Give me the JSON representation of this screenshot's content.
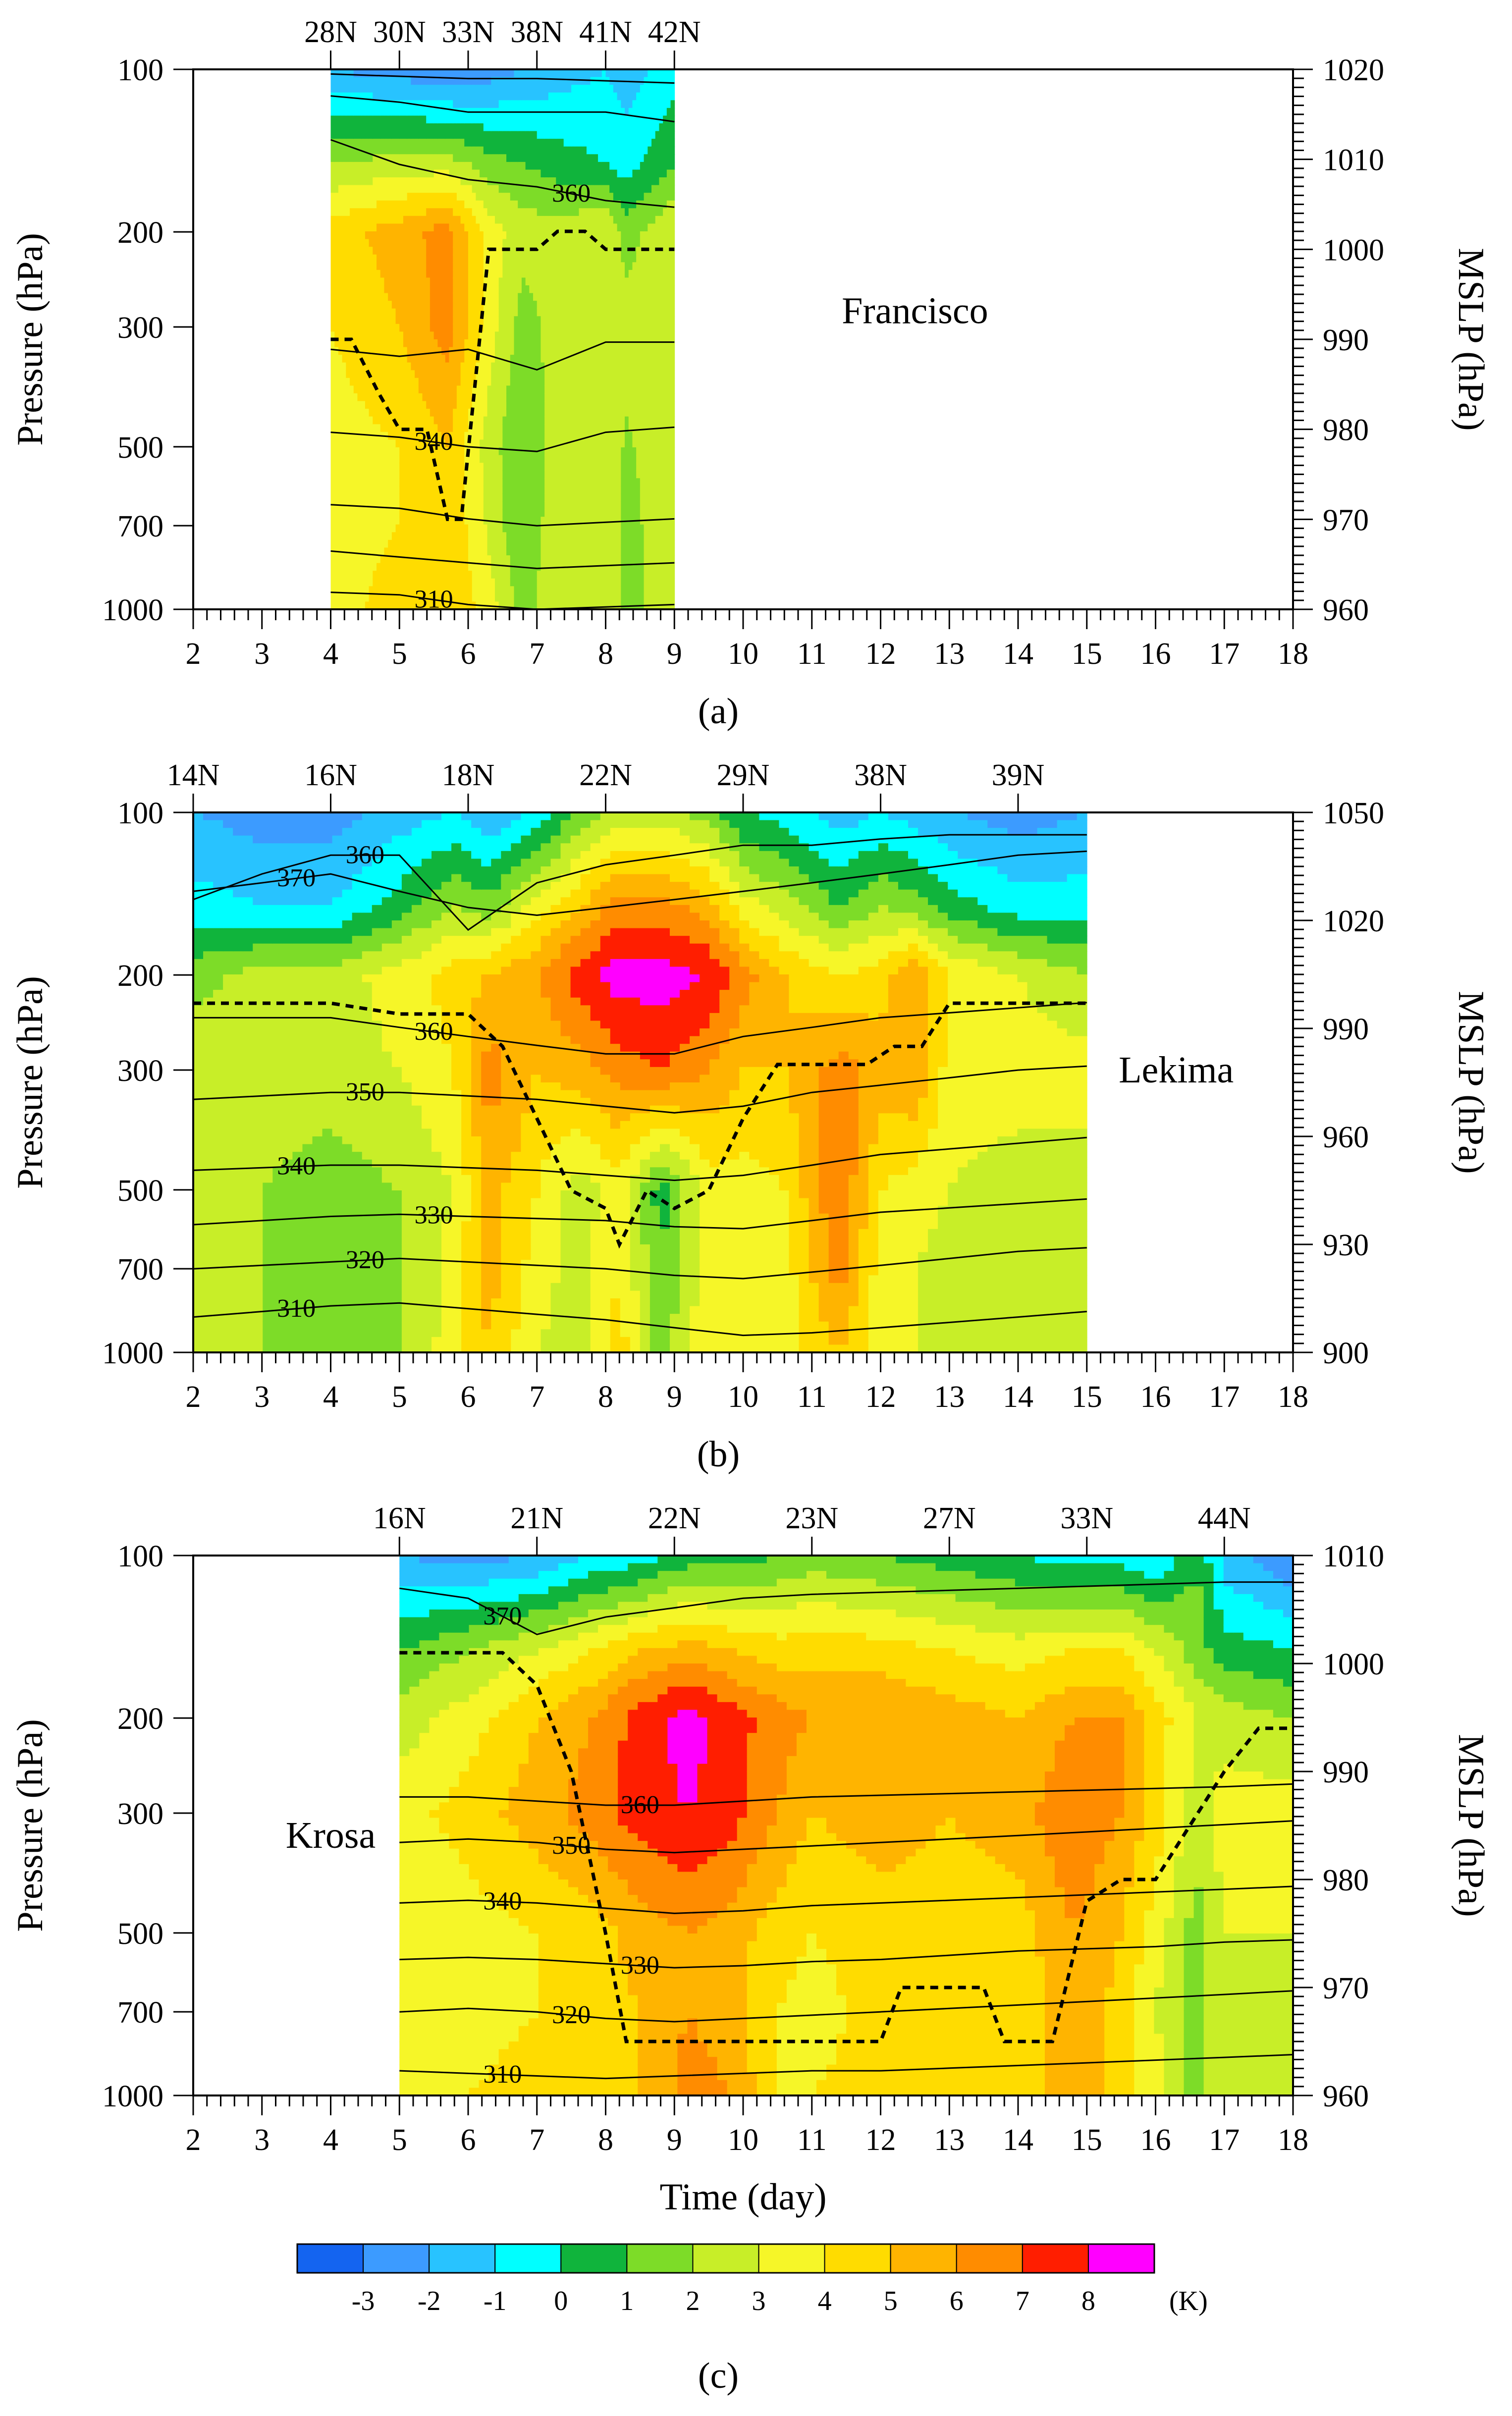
{
  "figure": {
    "colorbar": {
      "colors": [
        "#1464f0",
        "#3c9bff",
        "#28c3ff",
        "#00ffff",
        "#10b43c",
        "#7ddc28",
        "#c8ee28",
        "#f6f628",
        "#ffdc00",
        "#ffb400",
        "#ff8c00",
        "#ff1e00",
        "#ff00ff"
      ],
      "tick_labels": [
        "-3",
        "-2",
        "-1",
        "0",
        "1",
        "2",
        "3",
        "4",
        "5",
        "6",
        "7",
        "8"
      ],
      "unit": "(K)"
    }
  },
  "chart_data": [
    {
      "type": "heatmap",
      "panel_label": "(a)",
      "storm": "Francisco",
      "xlabel": "",
      "ylabel": "Pressure (hPa)",
      "y2label": "MSLP (hPa)",
      "xlim": [
        2,
        18
      ],
      "x_ticks": [
        "2",
        "3",
        "4",
        "5",
        "6",
        "7",
        "8",
        "9",
        "10",
        "11",
        "12",
        "13",
        "14",
        "15",
        "16",
        "17",
        "18"
      ],
      "y_ticks": [
        "100",
        "200",
        "300",
        "500",
        "700",
        "1000"
      ],
      "y_tick_values": [
        100,
        200,
        300,
        500,
        700,
        1000
      ],
      "y2lim": [
        960,
        1020
      ],
      "y2_ticks": [
        "960",
        "970",
        "980",
        "990",
        "1000",
        "1010",
        "1020"
      ],
      "y2_tick_values": [
        960,
        970,
        980,
        990,
        1000,
        1010,
        1020
      ],
      "top_ticks": [
        "28N",
        "30N",
        "33N",
        "38N",
        "41N",
        "42N"
      ],
      "top_tick_days": [
        4,
        5,
        6,
        7,
        8,
        9
      ],
      "data_range": [
        4,
        9
      ],
      "anomaly_x": [
        4,
        5,
        5.7,
        6.3,
        6.8,
        7.3,
        8,
        8.3,
        9
      ],
      "anomaly_levels": [
        1000,
        700,
        500,
        300,
        200,
        150,
        100
      ],
      "anomaly_K": [
        [
          3.5,
          4.5,
          5.0,
          3.5,
          1.5,
          3.0,
          3.0,
          1.5,
          3.0
        ],
        [
          3.5,
          4.0,
          5.0,
          2.8,
          1.0,
          2.8,
          3.0,
          1.5,
          3.0
        ],
        [
          3.5,
          4.0,
          5.0,
          2.5,
          1.0,
          2.5,
          3.0,
          1.8,
          3.0
        ],
        [
          4.0,
          5.0,
          6.5,
          3.5,
          1.5,
          2.5,
          3.0,
          2.5,
          3.0
        ],
        [
          4.5,
          5.5,
          6.5,
          3.5,
          2.5,
          2.5,
          3.0,
          1.5,
          3.0
        ],
        [
          2.0,
          2.5,
          2.5,
          1.5,
          1.0,
          0.5,
          0.0,
          -0.5,
          1.0
        ],
        [
          -2.0,
          -2.5,
          -3.0,
          -2.5,
          -2.0,
          -1.5,
          -1.0,
          -1.5,
          -0.5
        ]
      ],
      "theta_x": [
        4,
        5,
        6,
        7,
        8,
        9
      ],
      "theta_contours": [
        {
          "label": "310",
          "p": [
            930,
            940,
            980,
            1000,
            990,
            980
          ]
        },
        {
          "label": "",
          "p": [
            780,
            800,
            820,
            840,
            830,
            820
          ]
        },
        {
          "label": "",
          "p": [
            640,
            650,
            680,
            700,
            690,
            680
          ]
        },
        {
          "label": "340",
          "p": [
            470,
            480,
            500,
            510,
            470,
            460
          ]
        },
        {
          "label": "",
          "p": [
            330,
            340,
            330,
            360,
            320,
            320
          ]
        },
        {
          "label": "360",
          "p": [
            135,
            150,
            160,
            165,
            175,
            180
          ]
        },
        {
          "label": "",
          "p": [
            112,
            115,
            120,
            120,
            120,
            125
          ]
        },
        {
          "label": "",
          "p": [
            102,
            103,
            104,
            104,
            105,
            106
          ]
        }
      ],
      "mslp_line": {
        "days": [
          4,
          4.3,
          4.7,
          5.0,
          5.4,
          5.7,
          5.9,
          6.3,
          6.7,
          7.0,
          7.3,
          7.7,
          8.0,
          8.5,
          9.0
        ],
        "mslp": [
          990,
          990,
          984,
          980,
          980,
          970,
          970,
          1000,
          1000,
          1000,
          1002,
          1002,
          1000,
          1000,
          1000
        ]
      },
      "label_x": 12.5,
      "label_y": 280
    },
    {
      "type": "heatmap",
      "panel_label": "(b)",
      "storm": "Lekima",
      "xlabel": "",
      "ylabel": "Pressure (hPa)",
      "y2label": "MSLP (hPa)",
      "xlim": [
        2,
        18
      ],
      "x_ticks": [
        "2",
        "3",
        "4",
        "5",
        "6",
        "7",
        "8",
        "9",
        "10",
        "11",
        "12",
        "13",
        "14",
        "15",
        "16",
        "17",
        "18"
      ],
      "y_ticks": [
        "100",
        "200",
        "300",
        "500",
        "700",
        "1000"
      ],
      "y_tick_values": [
        100,
        200,
        300,
        500,
        700,
        1000
      ],
      "y2lim": [
        900,
        1050
      ],
      "y2_ticks": [
        "900",
        "930",
        "960",
        "990",
        "1020",
        "1050"
      ],
      "y2_tick_values": [
        900,
        930,
        960,
        990,
        1020,
        1050
      ],
      "top_ticks": [
        "14N",
        "16N",
        "18N",
        "22N",
        "29N",
        "38N",
        "39N"
      ],
      "top_tick_days": [
        2,
        4,
        6,
        8,
        10,
        12,
        14
      ],
      "data_range": [
        2,
        15
      ],
      "anomaly_x": [
        2,
        3,
        4,
        5,
        5.8,
        6.3,
        7,
        7.6,
        8.2,
        8.8,
        9.5,
        10,
        10.6,
        11.4,
        12,
        12.5,
        13,
        14,
        15
      ],
      "anomaly_levels": [
        1000,
        700,
        500,
        300,
        200,
        150,
        100
      ],
      "anomaly_K": [
        [
          2.5,
          2.0,
          1.5,
          2.0,
          3.5,
          5.0,
          3.0,
          2.5,
          4.5,
          1.5,
          4.0,
          3.0,
          3.5,
          5.0,
          3.5,
          3.0,
          2.0,
          2.5,
          2.5
        ],
        [
          2.5,
          2.0,
          1.2,
          1.8,
          3.5,
          5.5,
          3.5,
          2.5,
          4.0,
          1.0,
          3.5,
          3.0,
          3.5,
          6.5,
          3.5,
          3.0,
          2.5,
          2.5,
          2.5
        ],
        [
          2.5,
          2.0,
          1.5,
          2.0,
          3.0,
          5.5,
          4.0,
          2.5,
          3.5,
          0.5,
          3.5,
          3.5,
          4.0,
          7.0,
          4.0,
          3.5,
          3.0,
          2.5,
          2.5
        ],
        [
          3.0,
          2.5,
          2.5,
          3.0,
          4.0,
          6.5,
          5.0,
          5.5,
          6.5,
          7.0,
          6.0,
          5.0,
          5.0,
          6.5,
          5.5,
          6.0,
          3.5,
          3.5,
          3.5
        ],
        [
          1.5,
          2.5,
          2.5,
          3.5,
          4.5,
          5.0,
          6.0,
          7.5,
          8.5,
          8.5,
          8.0,
          6.5,
          5.0,
          4.0,
          4.5,
          6.0,
          4.0,
          3.0,
          2.0
        ],
        [
          -0.5,
          -1.0,
          -1.0,
          0.5,
          2.0,
          1.5,
          3.5,
          5.0,
          6.5,
          6.5,
          5.5,
          3.5,
          2.5,
          1.0,
          2.0,
          1.5,
          0.5,
          -0.5,
          -0.5
        ],
        [
          -2.0,
          -2.5,
          -2.5,
          -1.5,
          -1.0,
          -2.0,
          -0.5,
          1.0,
          2.5,
          2.5,
          1.5,
          0.0,
          -0.5,
          -1.5,
          -1.0,
          -1.5,
          -2.0,
          -2.5,
          -2.0
        ]
      ],
      "theta_x": [
        2,
        3,
        4,
        5,
        6,
        7,
        8,
        9,
        10,
        11,
        12,
        13,
        14,
        15
      ],
      "theta_contours": [
        {
          "label": "310",
          "p": [
            860,
            840,
            820,
            810,
            830,
            850,
            870,
            900,
            930,
            920,
            900,
            880,
            860,
            840
          ]
        },
        {
          "label": "320",
          "p": [
            700,
            690,
            680,
            670,
            680,
            690,
            700,
            720,
            730,
            710,
            690,
            670,
            650,
            640
          ]
        },
        {
          "label": "330",
          "p": [
            580,
            570,
            560,
            555,
            560,
            565,
            570,
            585,
            590,
            570,
            550,
            540,
            530,
            520
          ]
        },
        {
          "label": "340",
          "p": [
            460,
            455,
            450,
            450,
            455,
            460,
            470,
            480,
            470,
            450,
            430,
            420,
            410,
            400
          ]
        },
        {
          "label": "350",
          "p": [
            340,
            335,
            330,
            330,
            335,
            340,
            350,
            360,
            350,
            330,
            320,
            310,
            300,
            295
          ]
        },
        {
          "label": "360",
          "p": [
            240,
            240,
            240,
            250,
            260,
            270,
            280,
            280,
            260,
            250,
            240,
            235,
            230,
            225
          ]
        },
        {
          "label": "370",
          "p": [
            140,
            135,
            130,
            140,
            150,
            155,
            150,
            145,
            140,
            135,
            130,
            125,
            120,
            118
          ]
        },
        {
          "label": "360",
          "p": [
            145,
            130,
            120,
            120,
            165,
            135,
            125,
            120,
            115,
            115,
            112,
            110,
            110,
            110
          ]
        }
      ],
      "mslp_line": {
        "days": [
          2,
          3,
          4,
          5,
          6,
          6.5,
          7,
          7.5,
          8,
          8.2,
          8.6,
          9,
          9.5,
          10,
          10.5,
          11,
          11.8,
          12.2,
          12.6,
          13,
          14,
          15
        ],
        "mslp": [
          997,
          997,
          997,
          994,
          994,
          985,
          965,
          945,
          940,
          930,
          945,
          940,
          945,
          965,
          980,
          980,
          980,
          985,
          985,
          997,
          997,
          997
        ]
      },
      "label_x": 16.3,
      "label_y": 300
    },
    {
      "type": "heatmap",
      "panel_label": "(c)",
      "storm": "Krosa",
      "xlabel": "Time (day)",
      "ylabel": "Pressure (hPa)",
      "y2label": "MSLP (hPa)",
      "xlim": [
        2,
        18
      ],
      "x_ticks": [
        "2",
        "3",
        "4",
        "5",
        "6",
        "7",
        "8",
        "9",
        "10",
        "11",
        "12",
        "13",
        "14",
        "15",
        "16",
        "17",
        "18"
      ],
      "y_ticks": [
        "100",
        "200",
        "300",
        "500",
        "700",
        "1000"
      ],
      "y_tick_values": [
        100,
        200,
        300,
        500,
        700,
        1000
      ],
      "y2lim": [
        960,
        1010
      ],
      "y2_ticks": [
        "960",
        "970",
        "980",
        "990",
        "1000",
        "1010"
      ],
      "y2_tick_values": [
        960,
        970,
        980,
        990,
        1000,
        1010
      ],
      "top_ticks": [
        "16N",
        "21N",
        "22N",
        "23N",
        "27N",
        "33N",
        "44N"
      ],
      "top_tick_days": [
        5,
        7,
        9,
        11,
        13,
        15,
        17
      ],
      "data_range": [
        5,
        18
      ],
      "anomaly_x": [
        5,
        6,
        7,
        7.8,
        8.5,
        9.2,
        9.8,
        10.5,
        11,
        12,
        13,
        14,
        14.8,
        15.5,
        16,
        16.6,
        17,
        18
      ],
      "anomaly_levels": [
        1000,
        700,
        500,
        300,
        200,
        150,
        100
      ],
      "anomaly_K": [
        [
          3.0,
          4.0,
          4.5,
          4.5,
          5.0,
          6.5,
          6.0,
          4.0,
          4.0,
          4.5,
          4.0,
          4.0,
          6.0,
          4.5,
          3.5,
          1.5,
          3.0,
          2.5
        ],
        [
          3.0,
          3.5,
          4.0,
          4.5,
          5.0,
          6.0,
          5.5,
          4.0,
          3.5,
          4.5,
          4.0,
          4.0,
          6.0,
          4.5,
          3.0,
          1.5,
          3.0,
          2.5
        ],
        [
          3.0,
          3.5,
          4.0,
          4.5,
          5.5,
          6.0,
          5.5,
          4.5,
          4.0,
          4.5,
          4.5,
          4.5,
          6.0,
          5.0,
          3.5,
          1.5,
          3.0,
          3.0
        ],
        [
          3.5,
          4.5,
          5.5,
          6.5,
          7.5,
          8.0,
          7.5,
          6.0,
          5.0,
          5.5,
          5.0,
          5.5,
          7.0,
          6.0,
          4.5,
          2.5,
          3.5,
          3.5
        ],
        [
          2.5,
          3.5,
          5.0,
          6.0,
          7.5,
          8.5,
          7.5,
          6.5,
          6.0,
          6.0,
          5.5,
          5.0,
          6.0,
          6.0,
          4.5,
          3.0,
          2.5,
          2.0
        ],
        [
          1.0,
          2.0,
          3.0,
          4.0,
          5.0,
          5.5,
          5.0,
          4.5,
          4.5,
          4.5,
          4.0,
          3.5,
          4.0,
          4.0,
          3.0,
          1.5,
          0.5,
          0.0
        ],
        [
          -2.0,
          -2.5,
          -2.0,
          -1.0,
          -0.5,
          0.5,
          0.5,
          1.0,
          1.5,
          1.0,
          0.5,
          0.0,
          -0.5,
          -0.5,
          -1.0,
          1.0,
          -1.5,
          -3.0
        ]
      ],
      "theta_x": [
        5,
        6,
        7,
        8,
        9,
        10,
        11,
        12,
        13,
        14,
        15,
        16,
        17,
        18
      ],
      "theta_contours": [
        {
          "label": "310",
          "p": [
            900,
            910,
            920,
            930,
            920,
            910,
            900,
            900,
            890,
            880,
            870,
            860,
            850,
            840
          ]
        },
        {
          "label": "320",
          "p": [
            700,
            690,
            700,
            720,
            730,
            720,
            710,
            700,
            690,
            680,
            670,
            660,
            650,
            640
          ]
        },
        {
          "label": "330",
          "p": [
            560,
            555,
            560,
            570,
            580,
            575,
            565,
            560,
            550,
            540,
            535,
            530,
            520,
            515
          ]
        },
        {
          "label": "340",
          "p": [
            440,
            435,
            440,
            450,
            460,
            455,
            445,
            440,
            435,
            430,
            425,
            420,
            415,
            410
          ]
        },
        {
          "label": "350",
          "p": [
            340,
            335,
            340,
            350,
            355,
            350,
            345,
            340,
            335,
            330,
            325,
            320,
            315,
            310
          ]
        },
        {
          "label": "360",
          "p": [
            280,
            280,
            285,
            290,
            290,
            285,
            280,
            278,
            276,
            274,
            272,
            270,
            268,
            265
          ]
        },
        {
          "label": "370",
          "p": [
            115,
            120,
            140,
            130,
            125,
            120,
            118,
            117,
            116,
            115,
            114,
            113,
            112,
            112
          ]
        }
      ],
      "mslp_line": {
        "days": [
          5,
          6.5,
          7,
          7.5,
          8,
          8.3,
          9,
          10,
          11,
          12,
          12.3,
          13,
          13.5,
          13.8,
          14,
          14.5,
          15,
          15.5,
          16,
          16.5,
          17,
          17.5,
          18
        ],
        "mslp": [
          1001,
          1001,
          998,
          990,
          975,
          965,
          965,
          965,
          965,
          965,
          970,
          970,
          970,
          965,
          965,
          965,
          978,
          980,
          980,
          985,
          990,
          994,
          994
        ]
      },
      "label_x": 4.0,
      "label_y": 330
    }
  ]
}
